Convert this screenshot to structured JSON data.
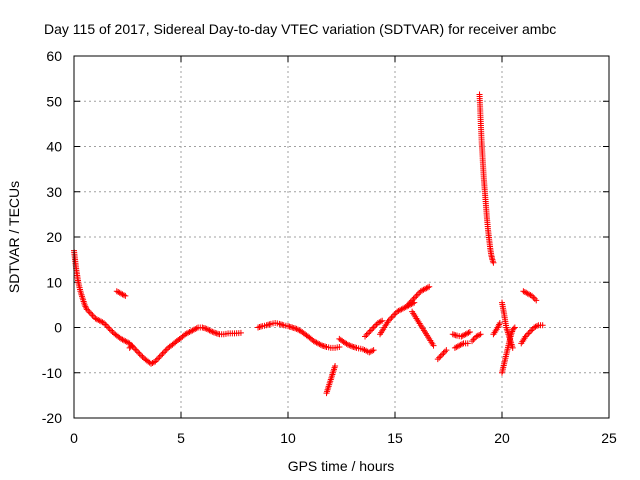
{
  "chart_data": {
    "type": "scatter",
    "title": "Day 115 of 2017, Sidereal Day-to-day VTEC variation (SDTVAR) for receiver ambc",
    "xlabel": "GPS time / hours",
    "ylabel": "SDTVAR / TECUs",
    "xlim": [
      0,
      25
    ],
    "ylim": [
      -20,
      60
    ],
    "xticks": [
      0,
      5,
      10,
      15,
      20,
      25
    ],
    "yticks": [
      -20,
      -10,
      0,
      10,
      20,
      30,
      40,
      50,
      60
    ],
    "grid": true,
    "marker": "+",
    "color": "#ff0000",
    "series": [
      {
        "name": "SDTVAR",
        "segments": [
          [
            [
              0.0,
              17
            ],
            [
              0.05,
              15
            ],
            [
              0.1,
              13
            ],
            [
              0.15,
              11.5
            ],
            [
              0.2,
              10
            ],
            [
              0.3,
              8
            ],
            [
              0.4,
              6.5
            ],
            [
              0.5,
              5
            ],
            [
              0.6,
              4
            ],
            [
              0.8,
              3
            ],
            [
              1.0,
              2
            ],
            [
              1.2,
              1.5
            ],
            [
              1.4,
              1
            ],
            [
              1.6,
              0
            ],
            [
              1.8,
              -1
            ],
            [
              2.0,
              -1.8
            ],
            [
              2.2,
              -2.5
            ],
            [
              2.4,
              -3
            ],
            [
              2.6,
              -3.5
            ],
            [
              2.8,
              -4.5
            ],
            [
              3.0,
              -5.5
            ],
            [
              3.2,
              -6.5
            ],
            [
              3.4,
              -7.3
            ],
            [
              3.6,
              -8
            ],
            [
              3.8,
              -7.5
            ],
            [
              4.0,
              -6.5
            ],
            [
              4.2,
              -5.5
            ],
            [
              4.4,
              -4.5
            ],
            [
              4.6,
              -3.8
            ],
            [
              4.8,
              -3
            ],
            [
              5.0,
              -2.3
            ],
            [
              5.2,
              -1.5
            ],
            [
              5.4,
              -1
            ],
            [
              5.6,
              -0.5
            ],
            [
              5.8,
              0
            ],
            [
              6.0,
              0
            ],
            [
              6.2,
              -0.3
            ],
            [
              6.4,
              -0.8
            ],
            [
              6.6,
              -1.2
            ],
            [
              6.8,
              -1.5
            ],
            [
              7.0,
              -1.5
            ],
            [
              7.2,
              -1.3
            ],
            [
              7.5,
              -1.3
            ],
            [
              7.8,
              -1.2
            ]
          ],
          [
            [
              2.0,
              8
            ],
            [
              2.2,
              7.5
            ],
            [
              2.4,
              7
            ]
          ],
          [
            [
              2.6,
              -4.5
            ],
            [
              2.7,
              -4
            ]
          ],
          [
            [
              8.6,
              0
            ],
            [
              8.8,
              0.3
            ],
            [
              9.0,
              0.5
            ],
            [
              9.2,
              0.8
            ],
            [
              9.4,
              1
            ],
            [
              9.6,
              0.8
            ],
            [
              9.8,
              0.5
            ],
            [
              10.0,
              0.3
            ],
            [
              10.2,
              0
            ],
            [
              10.4,
              -0.3
            ],
            [
              10.6,
              -0.8
            ],
            [
              10.8,
              -1.5
            ],
            [
              11.0,
              -2.2
            ],
            [
              11.2,
              -3
            ],
            [
              11.4,
              -3.5
            ],
            [
              11.6,
              -4
            ],
            [
              11.8,
              -4.3
            ],
            [
              12.0,
              -4.5
            ],
            [
              12.2,
              -4.5
            ],
            [
              12.4,
              -4.3
            ]
          ],
          [
            [
              11.8,
              -14.5
            ],
            [
              11.9,
              -13
            ],
            [
              12.0,
              -11.5
            ],
            [
              12.1,
              -10
            ],
            [
              12.2,
              -8.5
            ]
          ],
          [
            [
              12.4,
              -2.5
            ],
            [
              12.6,
              -3.2
            ],
            [
              12.8,
              -3.8
            ],
            [
              13.0,
              -4.2
            ],
            [
              13.2,
              -4.5
            ],
            [
              13.5,
              -4.8
            ],
            [
              13.8,
              -5.5
            ],
            [
              14.0,
              -5
            ]
          ],
          [
            [
              13.6,
              -2
            ],
            [
              13.8,
              -1
            ],
            [
              14.0,
              0
            ],
            [
              14.2,
              1
            ],
            [
              14.4,
              1.5
            ]
          ],
          [
            [
              14.3,
              -1.5
            ],
            [
              14.5,
              0
            ],
            [
              14.7,
              1.5
            ],
            [
              14.9,
              2.5
            ],
            [
              15.1,
              3.5
            ],
            [
              15.3,
              4
            ],
            [
              15.5,
              4.5
            ],
            [
              15.7,
              5
            ],
            [
              15.9,
              5.5
            ]
          ],
          [
            [
              15.6,
              5
            ],
            [
              15.8,
              6
            ],
            [
              16.0,
              7
            ],
            [
              16.2,
              8
            ],
            [
              16.4,
              8.5
            ],
            [
              16.6,
              9
            ]
          ],
          [
            [
              15.8,
              3.5
            ],
            [
              16.0,
              2
            ],
            [
              16.2,
              0.5
            ],
            [
              16.4,
              -1
            ],
            [
              16.6,
              -2.5
            ],
            [
              16.8,
              -4
            ]
          ],
          [
            [
              17.0,
              -7
            ],
            [
              17.2,
              -6
            ],
            [
              17.4,
              -5
            ]
          ],
          [
            [
              17.7,
              -1.5
            ],
            [
              17.9,
              -1.8
            ],
            [
              18.1,
              -2
            ],
            [
              18.3,
              -1.5
            ],
            [
              18.5,
              -1
            ]
          ],
          [
            [
              17.8,
              -4.5
            ],
            [
              18.0,
              -4
            ],
            [
              18.2,
              -3.5
            ],
            [
              18.4,
              -3.5
            ]
          ],
          [
            [
              18.6,
              -3
            ],
            [
              18.8,
              -2
            ],
            [
              19.0,
              -1.5
            ]
          ],
          [
            [
              18.95,
              51.5
            ],
            [
              19.0,
              46
            ],
            [
              19.05,
              41
            ],
            [
              19.1,
              37
            ],
            [
              19.15,
              33
            ],
            [
              19.2,
              30
            ],
            [
              19.25,
              27
            ],
            [
              19.3,
              24
            ],
            [
              19.35,
              21.5
            ],
            [
              19.4,
              19.5
            ],
            [
              19.45,
              17.5
            ],
            [
              19.5,
              16
            ],
            [
              19.55,
              15
            ],
            [
              19.6,
              14.3
            ]
          ],
          [
            [
              19.6,
              -1.5
            ],
            [
              19.8,
              0
            ],
            [
              19.9,
              1
            ]
          ],
          [
            [
              20.0,
              5.5
            ],
            [
              20.1,
              3
            ],
            [
              20.2,
              0
            ],
            [
              20.3,
              -1.5
            ],
            [
              20.4,
              -3
            ],
            [
              20.5,
              -4.5
            ]
          ],
          [
            [
              20.0,
              -10
            ],
            [
              20.1,
              -8
            ],
            [
              20.2,
              -6
            ],
            [
              20.3,
              -4
            ],
            [
              20.4,
              -2
            ],
            [
              20.5,
              -0.5
            ],
            [
              20.6,
              0
            ]
          ],
          [
            [
              20.9,
              -3.5
            ],
            [
              21.1,
              -2
            ],
            [
              21.3,
              -1
            ],
            [
              21.5,
              0
            ],
            [
              21.7,
              0.5
            ],
            [
              21.9,
              0.5
            ]
          ],
          [
            [
              21.0,
              8
            ],
            [
              21.2,
              7.5
            ],
            [
              21.4,
              7
            ],
            [
              21.6,
              6
            ]
          ]
        ]
      }
    ]
  }
}
